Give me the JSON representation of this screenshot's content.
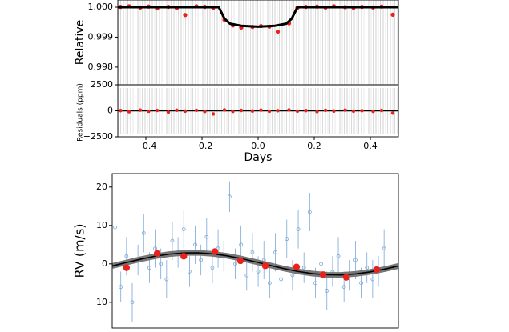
{
  "chart_data": [
    {
      "type": "lightcurve",
      "ylabel": "Relative",
      "xlim": [
        -0.5,
        0.5
      ],
      "ylim": [
        0.99741,
        1.00024
      ],
      "yticks": [
        {
          "value": 1,
          "label": "1.000"
        },
        0.999,
        0.998
      ],
      "color": "#e8221c",
      "x": [
        -0.49,
        -0.46,
        -0.42,
        -0.39,
        -0.36,
        -0.32,
        -0.29,
        -0.26,
        -0.22,
        -0.19,
        -0.16,
        -0.12,
        -0.09,
        -0.06,
        -0.02,
        0.01,
        0.04,
        0.07,
        0.11,
        0.14,
        0.17,
        0.21,
        0.24,
        0.27,
        0.31,
        0.34,
        0.37,
        0.41,
        0.44,
        0.48
      ],
      "values": [
        1.00001,
        1.00003,
        0.99999,
        1.00002,
        0.99996,
        1.00001,
        0.99997,
        0.99974,
        1.00003,
        1.00001,
        0.99998,
        0.99958,
        0.99939,
        0.99932,
        0.99934,
        0.99937,
        0.99935,
        0.99918,
        0.99946,
        0.99998,
        1.00001,
        1.00002,
        0.99999,
        1.00003,
        1.0,
        0.99998,
        1.00001,
        0.99999,
        1.00002,
        0.99975
      ],
      "model": {
        "color": "#000000",
        "x": [
          -0.5,
          -0.14,
          -0.12,
          -0.1,
          -0.06,
          0,
          0.06,
          0.1,
          0.12,
          0.14,
          0.5
        ],
        "values": [
          1,
          1,
          0.99962,
          0.99945,
          0.99938,
          0.99935,
          0.99938,
          0.99945,
          0.99962,
          1,
          1
        ]
      }
    },
    {
      "type": "residuals",
      "ylabel": "Residuals (ppm)",
      "xlabel": "Days",
      "xlim": [
        -0.5,
        0.5
      ],
      "ylim": [
        -2500,
        2500
      ],
      "yticks": [
        {
          "value": 2500,
          "label": "2500"
        },
        0,
        {
          "value": -2500,
          "label": "−2500"
        }
      ],
      "xticks": [
        {
          "value": -0.4,
          "label": "−0.4"
        },
        {
          "value": -0.2,
          "label": "−0.2"
        },
        {
          "value": 0,
          "label": "0.0"
        },
        0.2,
        0.4
      ],
      "color": "#e8221c",
      "x": [
        -0.49,
        -0.46,
        -0.42,
        -0.39,
        -0.36,
        -0.32,
        -0.29,
        -0.26,
        -0.22,
        -0.19,
        -0.16,
        -0.12,
        -0.09,
        -0.06,
        -0.02,
        0.01,
        0.04,
        0.07,
        0.11,
        0.14,
        0.17,
        0.21,
        0.24,
        0.27,
        0.31,
        0.34,
        0.37,
        0.41,
        0.44,
        0.48
      ],
      "values": [
        20,
        -80,
        60,
        -40,
        30,
        -120,
        50,
        -30,
        40,
        -60,
        -300,
        80,
        -50,
        30,
        -20,
        60,
        -40,
        10,
        80,
        -30,
        20,
        -70,
        40,
        -20,
        60,
        -30,
        10,
        -50,
        30,
        -220
      ]
    },
    {
      "type": "rv",
      "ylabel": "RV (m/s)",
      "xlim": [
        0,
        1
      ],
      "ylim": [
        -16.7,
        23.5
      ],
      "yticks": [
        20,
        10,
        0,
        {
          "value": -10,
          "label": "−10"
        }
      ],
      "data": {
        "color": "#7aa6d6",
        "x": [
          0.01,
          0.03,
          0.05,
          0.07,
          0.09,
          0.11,
          0.13,
          0.15,
          0.17,
          0.19,
          0.21,
          0.23,
          0.25,
          0.27,
          0.29,
          0.31,
          0.33,
          0.35,
          0.37,
          0.39,
          0.41,
          0.43,
          0.45,
          0.47,
          0.49,
          0.51,
          0.53,
          0.55,
          0.57,
          0.59,
          0.61,
          0.63,
          0.65,
          0.67,
          0.69,
          0.71,
          0.73,
          0.75,
          0.77,
          0.79,
          0.81,
          0.83,
          0.85,
          0.87,
          0.89,
          0.91,
          0.93,
          0.95
        ],
        "values": [
          9.5,
          -6,
          2,
          -10,
          1,
          8,
          -1,
          4,
          0,
          -4,
          6,
          3,
          9,
          -2,
          5,
          1,
          7,
          -1,
          4,
          2,
          17.5,
          0,
          5,
          -3,
          3,
          -2,
          1,
          -5,
          3,
          -4,
          6.5,
          -3,
          9,
          -1,
          13.5,
          -5,
          0,
          -7,
          -2,
          2,
          -6,
          -3,
          1,
          -5,
          -1,
          -4,
          -2,
          4
        ],
        "errors": [
          5,
          4,
          5,
          5,
          4,
          5,
          4,
          5,
          4,
          5,
          5,
          4,
          5,
          4,
          5,
          4,
          5,
          4,
          5,
          4,
          4,
          4,
          5,
          4,
          5,
          4,
          5,
          4,
          5,
          4,
          5,
          4,
          5,
          4,
          5,
          4,
          4,
          5,
          4,
          5,
          4,
          4,
          5,
          4,
          4,
          5,
          4,
          5
        ]
      },
      "binned": {
        "color": "#e8221c",
        "x": [
          0.05,
          0.157,
          0.25,
          0.359,
          0.448,
          0.535,
          0.644,
          0.737,
          0.818,
          0.924
        ],
        "values": [
          -1,
          2.7,
          2,
          3.2,
          0.8,
          -0.5,
          -0.8,
          -2.8,
          -3.5,
          -1.5
        ]
      },
      "model": {
        "color": "#000000",
        "x": [
          0,
          0.05,
          0.1,
          0.15,
          0.2,
          0.25,
          0.3,
          0.35,
          0.4,
          0.45,
          0.5,
          0.55,
          0.6,
          0.65,
          0.7,
          0.75,
          0.8,
          0.85,
          0.9,
          0.95,
          1
        ],
        "values": [
          -0.54,
          0.36,
          1.23,
          1.99,
          2.54,
          2.85,
          2.88,
          2.62,
          2.11,
          1.4,
          0.54,
          -0.36,
          -1.23,
          -1.99,
          -2.54,
          -2.85,
          -2.88,
          -2.62,
          -2.11,
          -1.4,
          -0.54
        ]
      }
    }
  ]
}
